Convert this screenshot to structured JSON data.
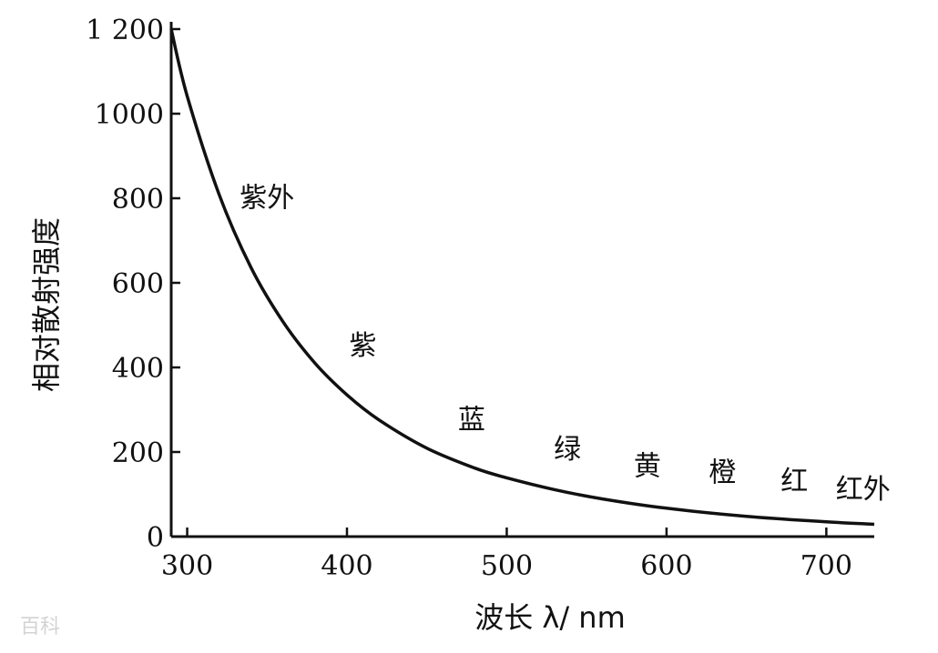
{
  "chart_data": {
    "type": "line",
    "xlabel": "波长 λ/ nm",
    "ylabel": "相对散射强度",
    "xlim": [
      290,
      730
    ],
    "ylim": [
      0,
      1200
    ],
    "x_ticks": [
      300,
      400,
      500,
      600,
      700
    ],
    "y_ticks": [
      0,
      200,
      400,
      600,
      800,
      1000,
      1200
    ],
    "y_tick_labels": [
      "0",
      "200",
      "400",
      "600",
      "800",
      "1000",
      "1 200"
    ],
    "grid": false,
    "legend": "none",
    "series": [
      {
        "x": [
          290,
          300,
          320,
          340,
          360,
          380,
          400,
          420,
          450,
          480,
          500,
          530,
          560,
          600,
          650,
          700,
          730
        ],
        "y": [
          1200,
          1042,
          809,
          636,
          508,
          410,
          335,
          276,
          209,
          162,
          139,
          111,
          89,
          67,
          48,
          35,
          29
        ]
      }
    ],
    "annotations": [
      {
        "text": "紫外",
        "x": 350,
        "y": 780
      },
      {
        "text": "紫",
        "x": 410,
        "y": 430
      },
      {
        "text": "蓝",
        "x": 478,
        "y": 255
      },
      {
        "text": "绿",
        "x": 538,
        "y": 185
      },
      {
        "text": "黄",
        "x": 588,
        "y": 145
      },
      {
        "text": "橙",
        "x": 635,
        "y": 130
      },
      {
        "text": "红",
        "x": 680,
        "y": 110
      },
      {
        "text": "红外",
        "x": 723,
        "y": 90
      }
    ]
  },
  "watermark": "百科"
}
